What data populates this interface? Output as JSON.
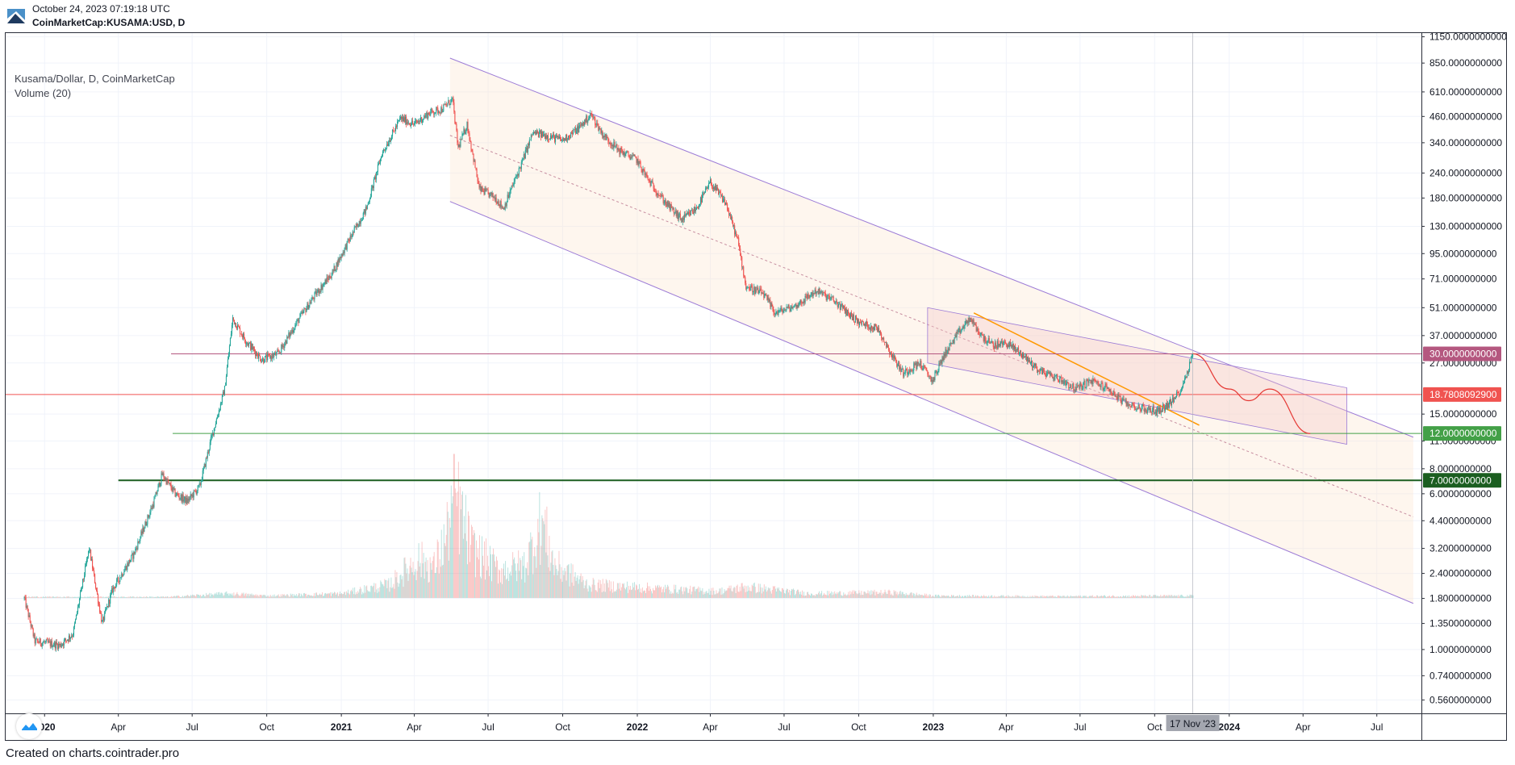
{
  "header": {
    "timestamp": "October 24, 2023 07:19:18 UTC",
    "symbol_line": "CoinMarketCap:KUSAMA:USD, D"
  },
  "legend": {
    "title": "Kusama/Dollar, D, CoinMarketCap",
    "volume": "Volume (20)"
  },
  "footer": {
    "credit": "Created on charts.cointrader.pro"
  },
  "colors": {
    "up": "#26a69a",
    "down": "#ef5350",
    "channel_line": "#9c7bd6",
    "channel_fill": "#fbe4cf",
    "inner_channel_fill": "#f3c6c6",
    "wedge_line": "#ff9800",
    "projection": "#e53935",
    "level_30": "#b4577f",
    "level_18": "#f05350",
    "level_12": "#43a047",
    "level_7": "#1b5e20"
  },
  "chart_data": {
    "type": "candlestick",
    "title": "Kusama/Dollar, D, CoinMarketCap",
    "y_scale": "log",
    "ylim": [
      0.48,
      1200
    ],
    "xlim": [
      "2019-11-14",
      "2024-08-25"
    ],
    "y_tick_labels": [
      "1150.0000000000",
      "850.0000000000",
      "610.0000000000",
      "460.0000000000",
      "340.0000000000",
      "240.0000000000",
      "180.0000000000",
      "130.0000000000",
      "95.0000000000",
      "71.0000000000",
      "51.0000000000",
      "37.0000000000",
      "27.0000000000",
      "15.0000000000",
      "11.0000000000",
      "8.0000000000",
      "6.0000000000",
      "4.4000000000",
      "3.2000000000",
      "2.4000000000",
      "1.8000000000",
      "1.3500000000",
      "1.0000000000",
      "0.7400000000",
      "0.5600000000"
    ],
    "y_tick_values": [
      1150,
      850,
      610,
      460,
      340,
      240,
      180,
      130,
      95,
      71,
      51,
      37,
      27,
      15,
      11,
      8,
      6,
      4.4,
      3.2,
      2.4,
      1.8,
      1.35,
      1.0,
      0.74,
      0.56
    ],
    "x_ticks": [
      {
        "date": "2020-01-01",
        "label": "2020",
        "bold": true
      },
      {
        "date": "2020-04-01",
        "label": "Apr"
      },
      {
        "date": "2020-07-01",
        "label": "Jul"
      },
      {
        "date": "2020-10-01",
        "label": "Oct"
      },
      {
        "date": "2021-01-01",
        "label": "2021",
        "bold": true
      },
      {
        "date": "2021-04-01",
        "label": "Apr"
      },
      {
        "date": "2021-07-01",
        "label": "Jul"
      },
      {
        "date": "2021-10-01",
        "label": "Oct"
      },
      {
        "date": "2022-01-01",
        "label": "2022",
        "bold": true
      },
      {
        "date": "2022-04-01",
        "label": "Apr"
      },
      {
        "date": "2022-07-01",
        "label": "Jul"
      },
      {
        "date": "2022-10-01",
        "label": "Oct"
      },
      {
        "date": "2023-01-01",
        "label": "2023",
        "bold": true
      },
      {
        "date": "2023-04-01",
        "label": "Apr"
      },
      {
        "date": "2023-07-01",
        "label": "Jul"
      },
      {
        "date": "2023-10-01",
        "label": "Oct"
      },
      {
        "date": "2024-01-01",
        "label": "2024",
        "bold": true
      },
      {
        "date": "2024-04-01",
        "label": "Apr"
      },
      {
        "date": "2024-07-01",
        "label": "Jul"
      }
    ],
    "crosshair": {
      "date": "2023-11-17",
      "label": "17 Nov '23"
    },
    "price_path": [
      [
        "2019-12-07",
        1.8
      ],
      [
        "2019-12-20",
        1.1
      ],
      [
        "2020-01-20",
        1.05
      ],
      [
        "2020-02-05",
        1.2
      ],
      [
        "2020-02-25",
        3.2
      ],
      [
        "2020-03-12",
        1.35
      ],
      [
        "2020-03-25",
        2.0
      ],
      [
        "2020-04-20",
        3.0
      ],
      [
        "2020-05-15",
        5.5
      ],
      [
        "2020-05-25",
        7.5
      ],
      [
        "2020-06-10",
        6.0
      ],
      [
        "2020-06-25",
        5.5
      ],
      [
        "2020-07-10",
        6.5
      ],
      [
        "2020-07-25",
        11.5
      ],
      [
        "2020-08-10",
        20.0
      ],
      [
        "2020-08-20",
        45.0
      ],
      [
        "2020-09-05",
        35.0
      ],
      [
        "2020-09-25",
        28.0
      ],
      [
        "2020-10-15",
        30.0
      ],
      [
        "2020-11-10",
        45.0
      ],
      [
        "2020-12-01",
        60.0
      ],
      [
        "2020-12-20",
        75.0
      ],
      [
        "2021-01-10",
        110.0
      ],
      [
        "2021-02-01",
        160.0
      ],
      [
        "2021-02-20",
        300.0
      ],
      [
        "2021-03-15",
        450.0
      ],
      [
        "2021-04-01",
        420.0
      ],
      [
        "2021-04-20",
        480.0
      ],
      [
        "2021-05-05",
        500.0
      ],
      [
        "2021-05-18",
        560.0
      ],
      [
        "2021-05-25",
        320.0
      ],
      [
        "2021-06-05",
        420.0
      ],
      [
        "2021-06-20",
        200.0
      ],
      [
        "2021-07-10",
        180.0
      ],
      [
        "2021-07-20",
        160.0
      ],
      [
        "2021-08-10",
        260.0
      ],
      [
        "2021-08-25",
        380.0
      ],
      [
        "2021-09-10",
        370.0
      ],
      [
        "2021-10-01",
        350.0
      ],
      [
        "2021-10-20",
        400.0
      ],
      [
        "2021-11-05",
        470.0
      ],
      [
        "2021-11-20",
        370.0
      ],
      [
        "2021-12-10",
        310.0
      ],
      [
        "2021-12-31",
        280.0
      ],
      [
        "2022-01-15",
        220.0
      ],
      [
        "2022-02-05",
        170.0
      ],
      [
        "2022-02-25",
        140.0
      ],
      [
        "2022-03-15",
        160.0
      ],
      [
        "2022-04-01",
        215.0
      ],
      [
        "2022-04-20",
        170.0
      ],
      [
        "2022-05-05",
        110.0
      ],
      [
        "2022-05-15",
        65.0
      ],
      [
        "2022-06-05",
        60.0
      ],
      [
        "2022-06-20",
        48.0
      ],
      [
        "2022-07-15",
        52.0
      ],
      [
        "2022-08-10",
        62.0
      ],
      [
        "2022-09-01",
        55.0
      ],
      [
        "2022-10-01",
        43.0
      ],
      [
        "2022-10-25",
        40.0
      ],
      [
        "2022-11-10",
        30.0
      ],
      [
        "2022-11-25",
        24.0
      ],
      [
        "2022-12-15",
        27.0
      ],
      [
        "2022-12-31",
        22.0
      ],
      [
        "2023-01-15",
        30.0
      ],
      [
        "2023-02-01",
        38.0
      ],
      [
        "2023-02-15",
        45.0
      ],
      [
        "2023-03-01",
        37.0
      ],
      [
        "2023-03-15",
        33.0
      ],
      [
        "2023-04-01",
        34.0
      ],
      [
        "2023-04-20",
        30.0
      ],
      [
        "2023-05-10",
        25.0
      ],
      [
        "2023-06-10",
        22.0
      ],
      [
        "2023-06-25",
        20.0
      ],
      [
        "2023-07-15",
        22.0
      ],
      [
        "2023-08-05",
        20.0
      ],
      [
        "2023-08-25",
        17.0
      ],
      [
        "2023-09-15",
        16.0
      ],
      [
        "2023-10-05",
        15.5
      ],
      [
        "2023-10-15",
        16.5
      ],
      [
        "2023-10-24",
        17.5
      ],
      [
        "2023-11-05",
        21.0
      ],
      [
        "2023-11-17",
        30.0
      ]
    ],
    "volume_profile": [
      [
        "2019-12-07",
        0.01
      ],
      [
        "2020-06-01",
        0.01
      ],
      [
        "2020-08-15",
        0.04
      ],
      [
        "2020-10-01",
        0.02
      ],
      [
        "2021-01-01",
        0.04
      ],
      [
        "2021-03-01",
        0.12
      ],
      [
        "2021-04-05",
        0.35
      ],
      [
        "2021-04-25",
        0.28
      ],
      [
        "2021-05-10",
        0.55
      ],
      [
        "2021-05-20",
        0.95
      ],
      [
        "2021-06-10",
        0.45
      ],
      [
        "2021-07-15",
        0.25
      ],
      [
        "2021-08-15",
        0.3
      ],
      [
        "2021-09-05",
        0.7
      ],
      [
        "2021-09-20",
        0.3
      ],
      [
        "2021-11-01",
        0.12
      ],
      [
        "2022-01-15",
        0.09
      ],
      [
        "2022-04-10",
        0.06
      ],
      [
        "2022-05-15",
        0.1
      ],
      [
        "2022-08-01",
        0.04
      ],
      [
        "2022-11-10",
        0.05
      ],
      [
        "2023-01-01",
        0.02
      ],
      [
        "2023-06-01",
        0.015
      ],
      [
        "2023-11-17",
        0.02
      ]
    ],
    "horizontal_levels": [
      {
        "value": 30.0,
        "label": "30.0000000000",
        "from": "2020-06-05",
        "color_key": "level_30"
      },
      {
        "value": 18.78080929,
        "label": "18.7808092900",
        "from": "2019-11-14",
        "color_key": "level_18"
      },
      {
        "value": 12.0,
        "label": "12.0000000000",
        "from": "2020-06-07",
        "color_key": "level_12"
      },
      {
        "value": 7.0,
        "label": "7.0000000000",
        "from": "2020-04-01",
        "color_key": "level_7"
      }
    ],
    "descending_channel": {
      "upper": [
        [
          "2021-05-15",
          900
        ],
        [
          "2024-08-15",
          11.5
        ]
      ],
      "middle": [
        [
          "2021-05-15",
          370
        ],
        [
          "2024-08-15",
          4.6
        ]
      ],
      "lower": [
        [
          "2021-05-15",
          173
        ],
        [
          "2024-08-15",
          1.7
        ]
      ]
    },
    "inner_channel": {
      "upper": [
        [
          "2022-12-25",
          51
        ],
        [
          "2024-05-25",
          20.3
        ]
      ],
      "lower": [
        [
          "2022-12-25",
          27
        ],
        [
          "2024-05-25",
          10.6
        ]
      ]
    },
    "wedge_line": [
      [
        "2023-02-20",
        48
      ],
      [
        "2023-11-25",
        13.2
      ]
    ],
    "projection_path": [
      [
        "2023-11-17",
        30
      ],
      [
        "2024-01-01",
        20
      ],
      [
        "2024-01-25",
        17.5
      ],
      [
        "2024-02-20",
        20
      ],
      [
        "2024-04-10",
        12
      ]
    ]
  }
}
